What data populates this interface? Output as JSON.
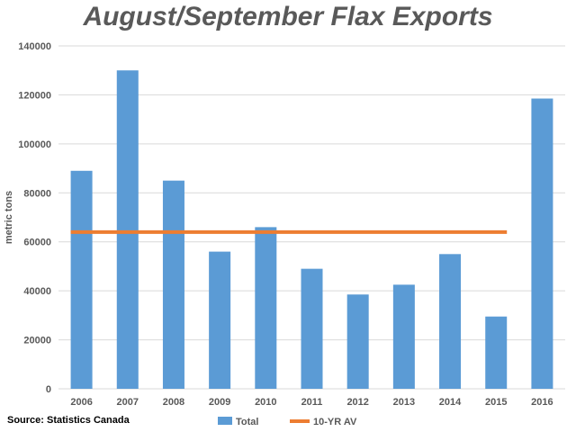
{
  "colors": {
    "bar": "#5B9BD5",
    "avg_line": "#ED7D31",
    "grid": "#D9D9D9",
    "text": "#595959"
  },
  "source_text": "Source: Statistics Canada",
  "chart_data": {
    "type": "bar",
    "title": "August/September Flax Exports",
    "xlabel": "",
    "ylabel": "metric tons",
    "categories": [
      "2006",
      "2007",
      "2008",
      "2009",
      "2010",
      "2011",
      "2012",
      "2013",
      "2014",
      "2015",
      "2016"
    ],
    "series": [
      {
        "name": "Total",
        "type": "bar",
        "values": [
          89000,
          130000,
          85000,
          56000,
          66000,
          49000,
          38500,
          42500,
          55000,
          29500,
          118500
        ]
      },
      {
        "name": "10-YR AV",
        "type": "line",
        "values": [
          64000,
          64000,
          64000,
          64000,
          64000,
          64000,
          64000,
          64000,
          64000,
          64000,
          null
        ]
      }
    ],
    "ylim": [
      0,
      140000
    ],
    "yticks": [
      0,
      20000,
      40000,
      60000,
      80000,
      100000,
      120000,
      140000
    ],
    "grid": true,
    "legend_position": "bottom"
  }
}
